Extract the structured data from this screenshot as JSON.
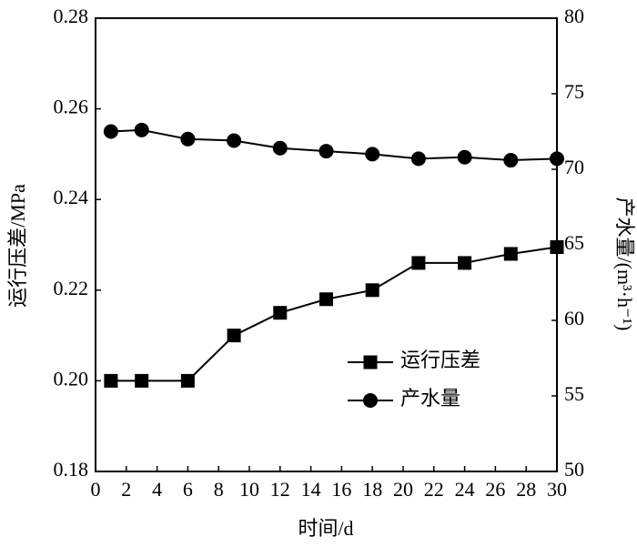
{
  "chart_data": {
    "type": "line",
    "x_label": "时间/d",
    "y_label": "运行压差/MPa",
    "y2_label": "产水量/(m³·h⁻¹)",
    "x": [
      1,
      3,
      6,
      9,
      12,
      15,
      18,
      21,
      24,
      27,
      30
    ],
    "series": [
      {
        "name": "运行压差",
        "color": "#000000",
        "marker": "square",
        "values": [
          0.2,
          0.2,
          0.2,
          0.21,
          0.215,
          0.218,
          0.22,
          0.226,
          0.226,
          0.228,
          0.2295
        ]
      },
      {
        "name": "产水量",
        "color": "#000000",
        "marker": "circle",
        "axis": "y2",
        "values": [
          72.5,
          72.6,
          72.0,
          71.9,
          71.4,
          71.2,
          71.0,
          70.7,
          70.8,
          70.6,
          70.7
        ]
      }
    ],
    "xlim": [
      0,
      30
    ],
    "xticks": [
      0,
      2,
      4,
      6,
      8,
      10,
      12,
      14,
      16,
      18,
      20,
      22,
      24,
      26,
      28,
      30
    ],
    "ylim": [
      0.18,
      0.28
    ],
    "yticks": [
      0.18,
      {
        "value": 0.2,
        "label": "0.20"
      },
      0.22,
      0.24,
      0.26,
      0.28
    ],
    "y2lim": [
      50,
      80
    ],
    "y2ticks": [
      50,
      55,
      60,
      65,
      70,
      75,
      80
    ],
    "legend": "right"
  }
}
